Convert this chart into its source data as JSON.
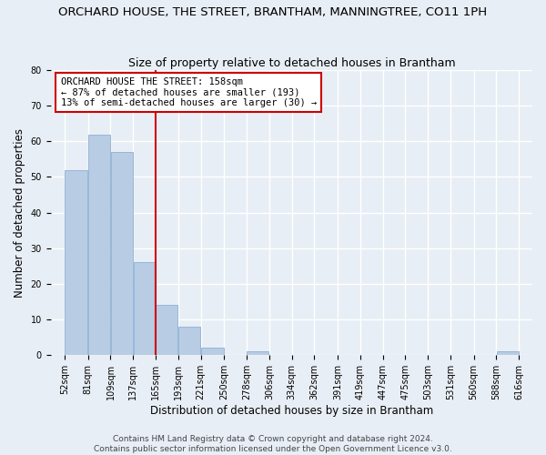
{
  "title": "ORCHARD HOUSE, THE STREET, BRANTHAM, MANNINGTREE, CO11 1PH",
  "subtitle": "Size of property relative to detached houses in Brantham",
  "xlabel": "Distribution of detached houses by size in Brantham",
  "ylabel": "Number of detached properties",
  "bar_values": [
    52,
    62,
    57,
    26,
    14,
    8,
    2,
    0,
    1,
    0,
    0,
    0,
    0,
    0,
    0,
    0,
    0,
    0,
    0,
    1
  ],
  "bin_edges": [
    52,
    81,
    109,
    137,
    165,
    193,
    221,
    250,
    278,
    306,
    334,
    362,
    391,
    419,
    447,
    475,
    503,
    531,
    560,
    588,
    616
  ],
  "tick_labels": [
    "52sqm",
    "81sqm",
    "109sqm",
    "137sqm",
    "165sqm",
    "193sqm",
    "221sqm",
    "250sqm",
    "278sqm",
    "306sqm",
    "334sqm",
    "362sqm",
    "391sqm",
    "419sqm",
    "447sqm",
    "475sqm",
    "503sqm",
    "531sqm",
    "560sqm",
    "588sqm",
    "616sqm"
  ],
  "bar_color": "#b8cce4",
  "bar_edge_color": "#7fa8d0",
  "vline_x_bin_index": 4,
  "vline_color": "#cc0000",
  "ylim": [
    0,
    80
  ],
  "yticks": [
    0,
    10,
    20,
    30,
    40,
    50,
    60,
    70,
    80
  ],
  "annotation_text": "ORCHARD HOUSE THE STREET: 158sqm\n← 87% of detached houses are smaller (193)\n13% of semi-detached houses are larger (30) →",
  "annotation_box_edgecolor": "#cc0000",
  "bg_color": "#e8eef5",
  "grid_color": "#ffffff",
  "footer_line1": "Contains HM Land Registry data © Crown copyright and database right 2024.",
  "footer_line2": "Contains public sector information licensed under the Open Government Licence v3.0.",
  "title_fontsize": 9.5,
  "subtitle_fontsize": 9,
  "axis_label_fontsize": 8.5,
  "tick_fontsize": 7,
  "annotation_fontsize": 7.5,
  "footer_fontsize": 6.5
}
